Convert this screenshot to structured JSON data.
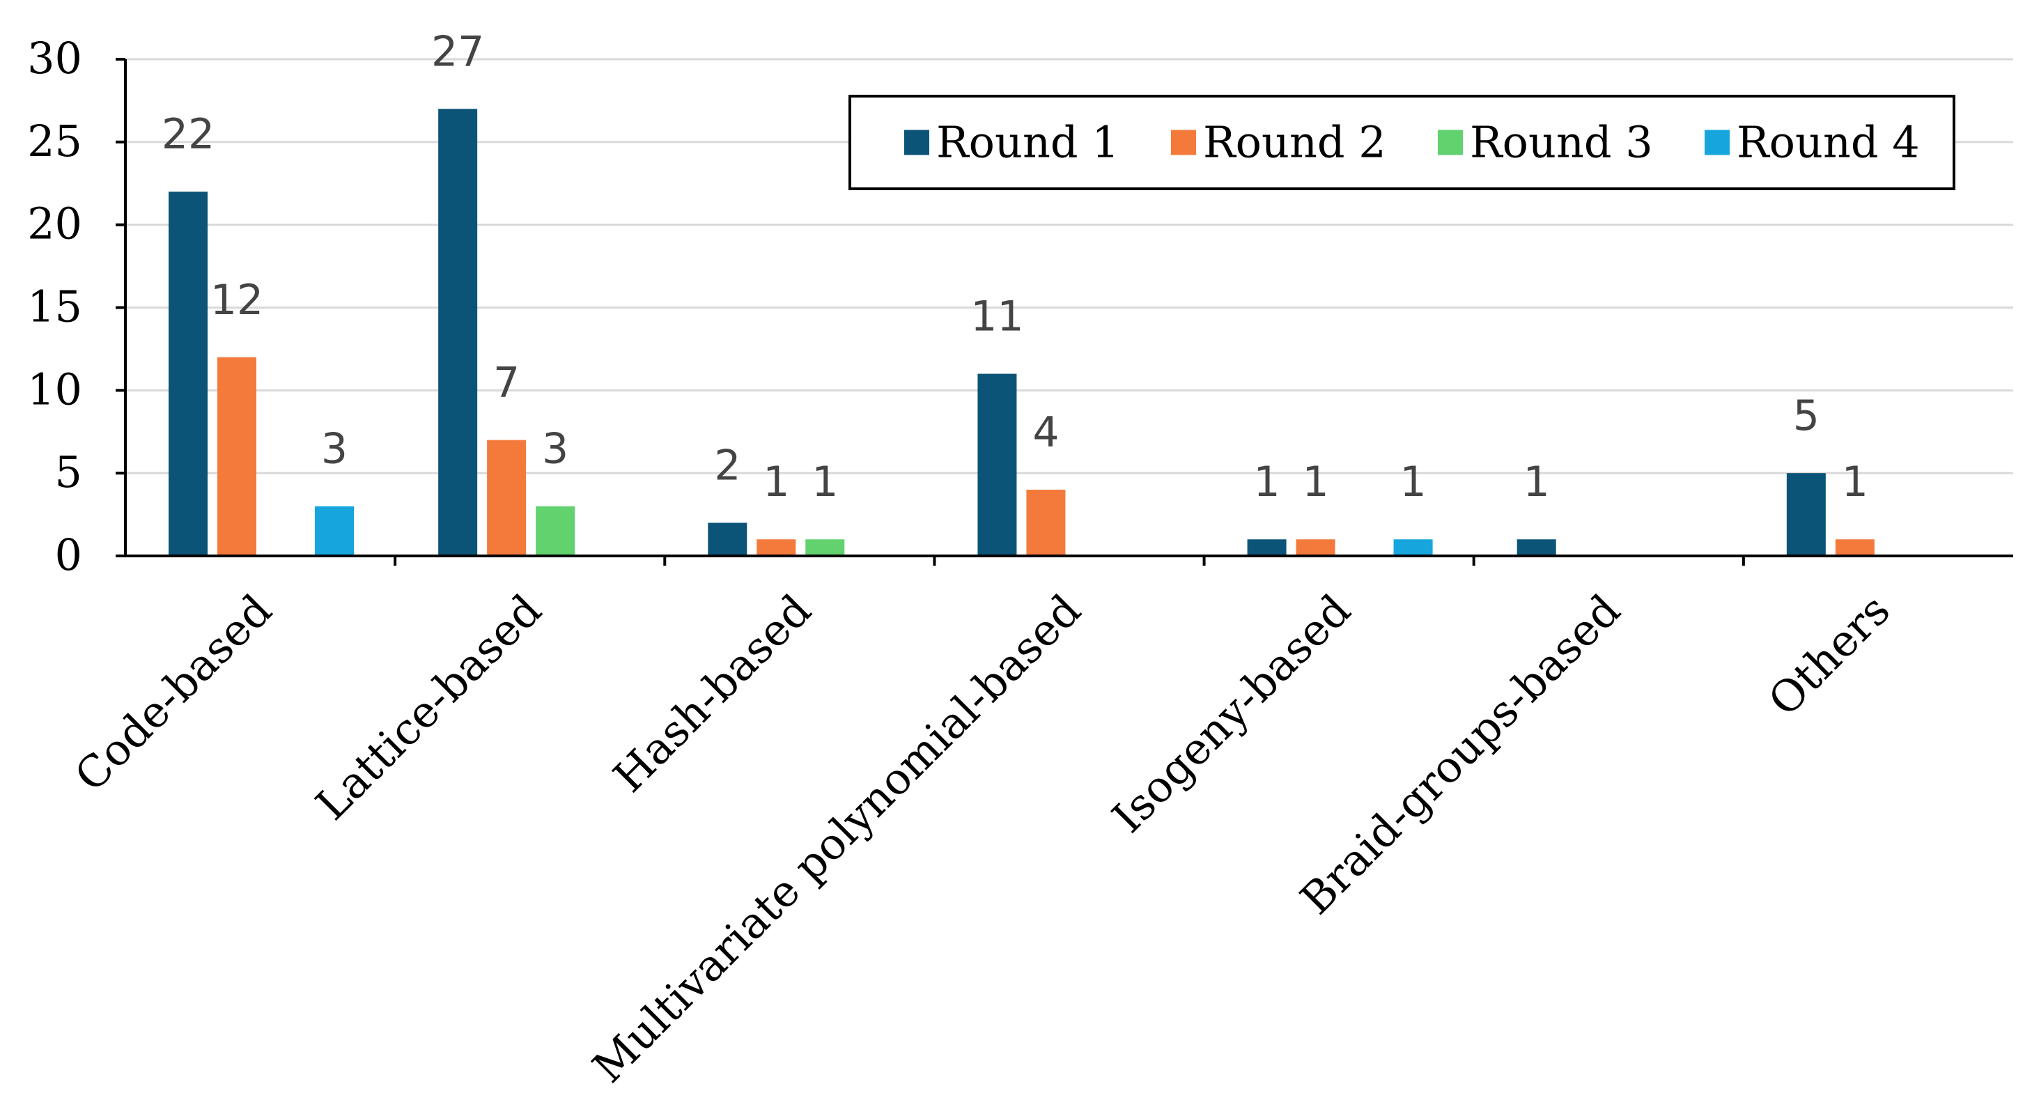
{
  "chart_data": {
    "type": "bar",
    "categories": [
      "Code-based",
      "Lattice-based",
      "Hash-based",
      "Multivariate polynomial-based",
      "Isogeny-based",
      "Braid-groups-based",
      "Others"
    ],
    "series": [
      {
        "name": "Round 1",
        "values": [
          22,
          27,
          2,
          11,
          1,
          1,
          5
        ],
        "color": "#0b5478"
      },
      {
        "name": "Round 2",
        "values": [
          12,
          7,
          1,
          4,
          1,
          0,
          1
        ],
        "color": "#f47a3c"
      },
      {
        "name": "Round 3",
        "values": [
          0,
          3,
          1,
          0,
          0,
          0,
          0
        ],
        "color": "#62d26f"
      },
      {
        "name": "Round 4",
        "values": [
          3,
          0,
          0,
          0,
          1,
          0,
          0
        ],
        "color": "#16a6dd"
      }
    ],
    "ylim": [
      0,
      30
    ],
    "yticks": [
      0,
      5,
      10,
      15,
      20,
      25,
      30
    ],
    "grid": true,
    "legend_position": "top-right"
  }
}
